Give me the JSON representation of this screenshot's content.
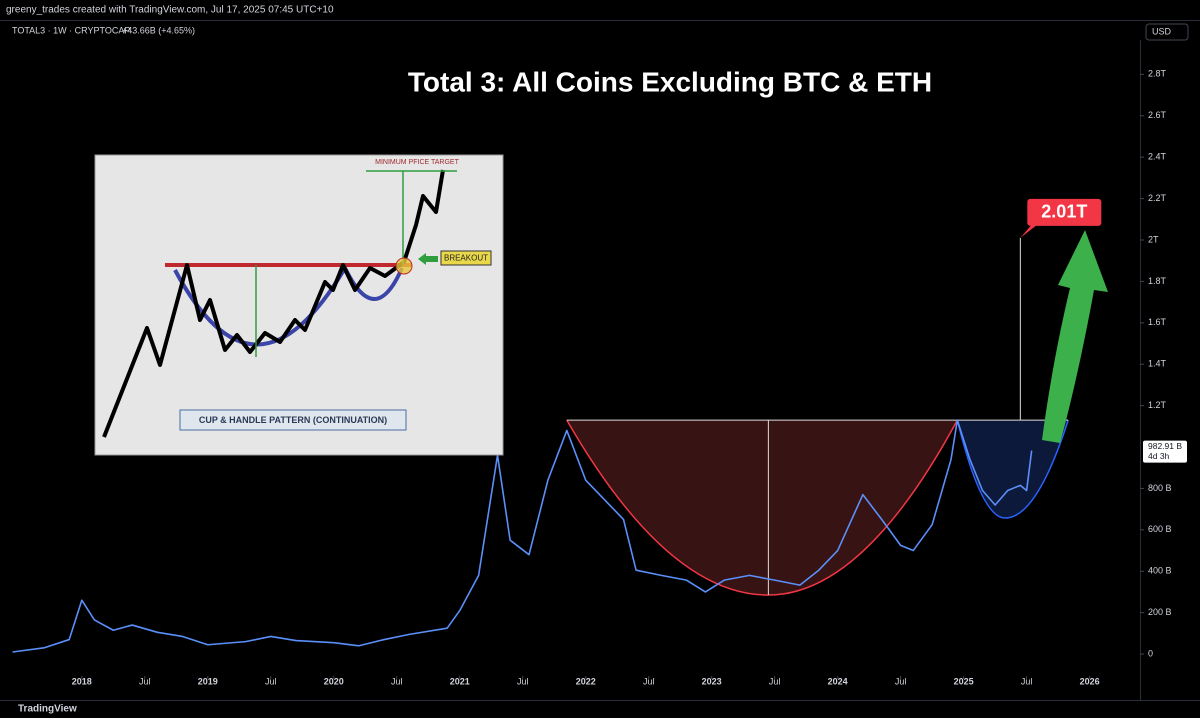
{
  "header": {
    "credit": "greeny_trades created with TradingView.com, Jul 17, 2025 07:45 UTC+10",
    "symbol": "TOTAL3 · 1W · CRYPTOCAP",
    "change": "+43.66B (+4.65%)",
    "currency": "USD",
    "brand": "TradingView"
  },
  "chart_data": {
    "type": "line",
    "title": "Total 3: All Coins Excluding BTC & ETH",
    "color": "#5b8ff9",
    "x": [
      2017.45,
      2017.7,
      2017.9,
      2018.0,
      2018.1,
      2018.25,
      2018.4,
      2018.6,
      2018.8,
      2019.0,
      2019.3,
      2019.5,
      2019.7,
      2020.0,
      2020.2,
      2020.4,
      2020.6,
      2020.9,
      2021.0,
      2021.15,
      2021.3,
      2021.4,
      2021.55,
      2021.7,
      2021.85,
      2022.0,
      2022.15,
      2022.3,
      2022.4,
      2022.6,
      2022.8,
      2022.95,
      2023.1,
      2023.3,
      2023.5,
      2023.7,
      2023.85,
      2024.0,
      2024.2,
      2024.35,
      2024.5,
      2024.6,
      2024.75,
      2024.9,
      2024.95,
      2025.05,
      2025.15,
      2025.25,
      2025.35,
      2025.45,
      2025.5,
      2025.54
    ],
    "values": [
      10,
      30,
      70,
      260,
      165,
      115,
      140,
      105,
      85,
      45,
      60,
      85,
      65,
      55,
      40,
      70,
      95,
      125,
      210,
      380,
      960,
      550,
      480,
      840,
      1080,
      840,
      745,
      650,
      405,
      380,
      357,
      300,
      357,
      380,
      357,
      333,
      405,
      500,
      770,
      650,
      525,
      500,
      625,
      940,
      1130,
      940,
      790,
      720,
      790,
      815,
      790,
      982.91
    ],
    "xlim": [
      2017.43,
      2026.4
    ],
    "xticks": [
      {
        "value": 2018,
        "label": "2018"
      },
      {
        "value": 2018.5,
        "label": "Jul"
      },
      {
        "value": 2019,
        "label": "2019"
      },
      {
        "value": 2019.5,
        "label": "Jul"
      },
      {
        "value": 2020,
        "label": "2020"
      },
      {
        "value": 2020.5,
        "label": "Jul"
      },
      {
        "value": 2021,
        "label": "2021"
      },
      {
        "value": 2021.5,
        "label": "Jul"
      },
      {
        "value": 2022,
        "label": "2022"
      },
      {
        "value": 2022.5,
        "label": "Jul"
      },
      {
        "value": 2023,
        "label": "2023"
      },
      {
        "value": 2023.5,
        "label": "Jul"
      },
      {
        "value": 2024,
        "label": "2024"
      },
      {
        "value": 2024.5,
        "label": "Jul"
      },
      {
        "value": 2025,
        "label": "2025"
      },
      {
        "value": 2025.5,
        "label": "Jul"
      },
      {
        "value": 2026,
        "label": "2026"
      }
    ],
    "ylim": [
      -77,
      2966
    ],
    "yticks": [
      0,
      {
        "value": 200,
        "label": "200 B"
      },
      {
        "value": 400,
        "label": "400 B"
      },
      {
        "value": 600,
        "label": "600 B"
      },
      {
        "value": 800,
        "label": "800 B"
      },
      {
        "value": 1200,
        "label": "1.2T"
      },
      {
        "value": 1400,
        "label": "1.4T"
      },
      {
        "value": 1600,
        "label": "1.6T"
      },
      {
        "value": 1800,
        "label": "1.8T"
      },
      {
        "value": 2000,
        "label": "2T"
      },
      {
        "value": 2200,
        "label": "2.2T"
      },
      {
        "value": 2400,
        "label": "2.4T"
      },
      {
        "value": 2600,
        "label": "2.6T"
      },
      {
        "value": 2800,
        "label": "2.8T"
      }
    ],
    "last_price": {
      "value": 982.91,
      "label": "982.91 B",
      "countdown": "4d 3h"
    },
    "cup": {
      "rim": 1130,
      "bottom": 285,
      "start": 2021.85,
      "mid": 2023.45,
      "end": 2024.95
    },
    "handle": {
      "bottom": 657,
      "low_x": 2025.33,
      "end": 2025.83
    },
    "target": {
      "x": 2025.45,
      "value": 2010,
      "label": "2.01T"
    },
    "annotations": {
      "inset_target": "MINIMUM PFICE TARGET",
      "inset_breakout": "BREAKOUT",
      "inset_caption": "CUP & HANDLE PATTERN (CONTINUATION)"
    }
  }
}
